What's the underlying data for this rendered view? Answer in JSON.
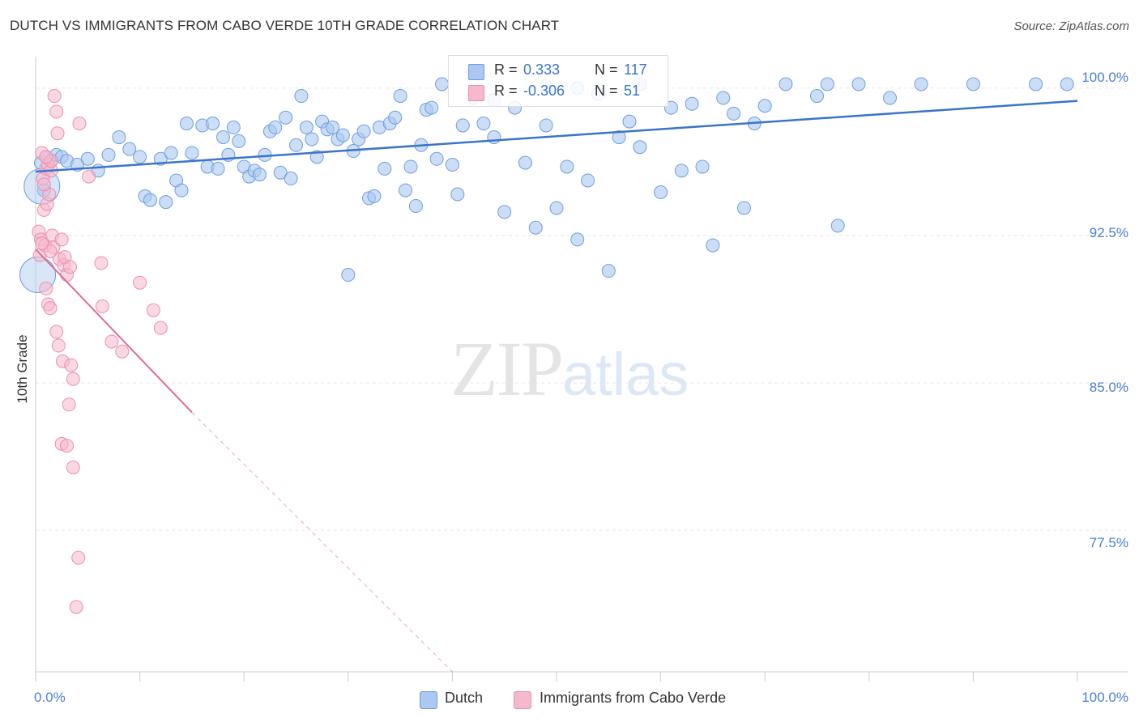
{
  "header": {
    "title": "DUTCH VS IMMIGRANTS FROM CABO VERDE 10TH GRADE CORRELATION CHART",
    "source": "Source: ZipAtlas.com"
  },
  "watermark": {
    "zip": "ZIP",
    "atlas": "atlas"
  },
  "stats": {
    "dutch": {
      "r_label": "R =",
      "r_value": "0.333",
      "n_label": "N =",
      "n_value": "117",
      "color": "#aac8f0"
    },
    "cabo": {
      "r_label": "R =",
      "r_value": "-0.306",
      "n_label": "N =",
      "n_value": "51",
      "color": "#f5b8cc"
    }
  },
  "legend": {
    "dutch_label": "Dutch",
    "cabo_label": "Immigrants from Cabo Verde"
  },
  "colors": {
    "dutch_fill": "#aac8f0",
    "dutch_stroke": "#6d9ee0",
    "dutch_line": "#3b74c9",
    "cabo_fill": "#f5b8cc",
    "cabo_stroke": "#eb8fb0",
    "cabo_line": "#e06b96",
    "tick_text": "#4a7fd0",
    "grid": "#e6e6e6"
  },
  "chart_data": {
    "type": "scatter",
    "title": "DUTCH VS IMMIGRANTS FROM CABO VERDE 10TH GRADE CORRELATION CHART",
    "xlabel": "",
    "ylabel": "10th Grade",
    "xlim": [
      0,
      100
    ],
    "ylim": [
      70.3,
      101.6
    ],
    "x_ticks": [
      "0.0%",
      "100.0%"
    ],
    "y_ticks": [
      {
        "value": 100.0,
        "label": "100.0%"
      },
      {
        "value": 92.5,
        "label": "92.5%"
      },
      {
        "value": 85.0,
        "label": "85.0%"
      },
      {
        "value": 77.5,
        "label": "77.5%"
      }
    ],
    "grid": true,
    "legend_position": "bottom-center",
    "series": [
      {
        "name": "Dutch",
        "r": 0.333,
        "n": 117,
        "trend": {
          "x": [
            0,
            100
          ],
          "y": [
            95.75,
            99.35
          ],
          "style": "solid"
        },
        "points": [
          [
            0.5,
            96.2
          ],
          [
            0.8,
            94.8
          ],
          [
            1,
            96.5
          ],
          [
            1.5,
            96.3
          ],
          [
            2,
            96.6
          ],
          [
            2.5,
            96.5
          ],
          [
            3,
            96.3
          ],
          [
            4,
            96.1
          ],
          [
            5,
            96.4
          ],
          [
            6,
            95.8
          ],
          [
            7,
            96.6
          ],
          [
            8,
            97.5
          ],
          [
            9,
            96.9
          ],
          [
            10,
            96.5
          ],
          [
            10.5,
            94.5
          ],
          [
            11,
            94.3
          ],
          [
            12,
            96.4
          ],
          [
            12.5,
            94.2
          ],
          [
            13,
            96.7
          ],
          [
            13.5,
            95.3
          ],
          [
            14,
            94.8
          ],
          [
            14.5,
            98.2
          ],
          [
            15,
            96.7
          ],
          [
            16,
            98.1
          ],
          [
            16.5,
            96.0
          ],
          [
            17,
            98.2
          ],
          [
            17.5,
            95.9
          ],
          [
            18,
            97.5
          ],
          [
            18.5,
            96.6
          ],
          [
            19,
            98.0
          ],
          [
            19.5,
            97.3
          ],
          [
            20,
            96.0
          ],
          [
            20.5,
            95.5
          ],
          [
            21,
            95.8
          ],
          [
            21.5,
            95.6
          ],
          [
            22,
            96.6
          ],
          [
            22.5,
            97.8
          ],
          [
            23,
            98.0
          ],
          [
            23.5,
            95.7
          ],
          [
            24,
            98.5
          ],
          [
            24.5,
            95.4
          ],
          [
            25,
            97.1
          ],
          [
            25.5,
            99.6
          ],
          [
            26,
            98.0
          ],
          [
            26.5,
            97.4
          ],
          [
            27,
            96.5
          ],
          [
            27.5,
            98.3
          ],
          [
            28,
            97.9
          ],
          [
            28.5,
            98.0
          ],
          [
            29,
            97.4
          ],
          [
            29.5,
            97.6
          ],
          [
            30,
            90.5
          ],
          [
            30.5,
            96.8
          ],
          [
            31,
            97.4
          ],
          [
            31.5,
            97.8
          ],
          [
            32,
            94.4
          ],
          [
            32.5,
            94.5
          ],
          [
            33,
            98.0
          ],
          [
            33.5,
            95.9
          ],
          [
            34,
            98.2
          ],
          [
            34.5,
            98.5
          ],
          [
            35,
            99.6
          ],
          [
            35.5,
            94.8
          ],
          [
            36,
            96.0
          ],
          [
            36.5,
            94.0
          ],
          [
            37,
            97.1
          ],
          [
            37.5,
            98.9
          ],
          [
            38,
            99.0
          ],
          [
            38.5,
            96.4
          ],
          [
            39,
            100.2
          ],
          [
            40,
            96.1
          ],
          [
            40.5,
            94.6
          ],
          [
            41,
            98.1
          ],
          [
            42,
            99.5
          ],
          [
            43,
            98.2
          ],
          [
            44,
            97.5
          ],
          [
            45,
            93.7
          ],
          [
            46,
            99.0
          ],
          [
            47,
            96.2
          ],
          [
            48,
            92.9
          ],
          [
            49,
            98.1
          ],
          [
            50,
            93.9
          ],
          [
            51,
            96.0
          ],
          [
            52,
            92.3
          ],
          [
            53,
            95.3
          ],
          [
            54,
            99.7
          ],
          [
            55,
            90.7
          ],
          [
            56,
            97.5
          ],
          [
            57,
            98.3
          ],
          [
            58,
            100.2
          ],
          [
            60,
            94.7
          ],
          [
            61,
            99.0
          ],
          [
            62,
            95.8
          ],
          [
            63,
            99.2
          ],
          [
            64,
            96.0
          ],
          [
            65,
            92.0
          ],
          [
            66,
            99.5
          ],
          [
            67,
            98.7
          ],
          [
            68,
            93.9
          ],
          [
            69,
            98.2
          ],
          [
            70,
            99.1
          ],
          [
            72,
            100.2
          ],
          [
            75,
            99.6
          ],
          [
            76,
            100.2
          ],
          [
            77,
            93.0
          ],
          [
            79,
            100.2
          ],
          [
            82,
            99.5
          ],
          [
            85,
            100.2
          ],
          [
            90,
            100.2
          ],
          [
            96,
            100.2
          ],
          [
            99,
            100.2
          ],
          [
            52,
            100.0
          ],
          [
            44,
            99.4
          ],
          [
            49,
            100.1
          ],
          [
            58,
            97.0
          ]
        ]
      },
      {
        "name": "Immigrants from Cabo Verde",
        "r": -0.306,
        "n": 51,
        "trend": {
          "x": [
            0,
            15,
            40
          ],
          "y": [
            91.8,
            83.5,
            70.3
          ],
          "solid_until": 15
        },
        "points": [
          [
            0.3,
            92.7
          ],
          [
            0.4,
            91.5
          ],
          [
            0.5,
            92.3
          ],
          [
            0.6,
            96.7
          ],
          [
            0.7,
            95.4
          ],
          [
            0.8,
            93.8
          ],
          [
            0.9,
            92.0
          ],
          [
            1,
            95.9
          ],
          [
            1.1,
            94.1
          ],
          [
            1.2,
            96.1
          ],
          [
            1.3,
            94.6
          ],
          [
            1.5,
            95.8
          ],
          [
            1.6,
            92.5
          ],
          [
            1.7,
            91.9
          ],
          [
            1.8,
            99.6
          ],
          [
            2,
            98.8
          ],
          [
            2.1,
            97.7
          ],
          [
            2.3,
            91.3
          ],
          [
            2.5,
            92.3
          ],
          [
            2.7,
            91.0
          ],
          [
            3,
            90.5
          ],
          [
            1,
            89.8
          ],
          [
            1.2,
            89.0
          ],
          [
            1.4,
            88.8
          ],
          [
            2,
            87.6
          ],
          [
            2.2,
            86.9
          ],
          [
            2.6,
            86.1
          ],
          [
            3.4,
            85.9
          ],
          [
            3.6,
            85.2
          ],
          [
            3.2,
            83.9
          ],
          [
            2.5,
            81.9
          ],
          [
            3,
            81.8
          ],
          [
            3.6,
            80.7
          ],
          [
            4.1,
            76.1
          ],
          [
            3.9,
            73.6
          ],
          [
            4.2,
            98.2
          ],
          [
            5.1,
            95.5
          ],
          [
            6.3,
            91.1
          ],
          [
            6.4,
            88.9
          ],
          [
            7.3,
            87.1
          ],
          [
            8.3,
            86.6
          ],
          [
            10,
            90.1
          ],
          [
            11.3,
            88.7
          ],
          [
            12,
            87.8
          ],
          [
            1.4,
            91.7
          ],
          [
            0.8,
            95.1
          ],
          [
            1.5,
            96.3
          ],
          [
            2.8,
            91.4
          ],
          [
            3.3,
            90.9
          ],
          [
            0.6,
            92.1
          ],
          [
            1,
            96.5
          ]
        ]
      }
    ],
    "large_points": [
      {
        "series": "Dutch",
        "x": 0.2,
        "y": 90.5,
        "size": "large"
      },
      {
        "series": "Dutch",
        "x": 0.6,
        "y": 95.0,
        "size": "large"
      }
    ]
  }
}
